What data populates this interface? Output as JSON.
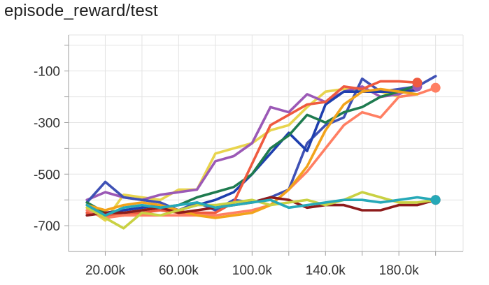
{
  "chart_data": {
    "type": "line",
    "title": "episode_reward/test",
    "xlabel": "",
    "ylabel": "",
    "xlim": [
      0,
      215000
    ],
    "ylim": [
      -800,
      40
    ],
    "x_ticks": [
      20000,
      40000,
      60000,
      80000,
      100000,
      120000,
      140000,
      160000,
      180000,
      200000
    ],
    "x_tick_labels": [
      "20.00k",
      "",
      "60.00k",
      "",
      "100.0k",
      "",
      "140.0k",
      "",
      "180.0k",
      ""
    ],
    "y_ticks": [
      -700,
      -600,
      -500,
      -400,
      -300,
      -200,
      -100,
      0
    ],
    "y_tick_labels": [
      "-700",
      "",
      "-500",
      "",
      "-300",
      "",
      "-100",
      ""
    ],
    "grid": true,
    "legend": "none",
    "series": [
      {
        "color": "#e8d44d",
        "points": [
          [
            10000,
            -630
          ],
          [
            20000,
            -680
          ],
          [
            30000,
            -580
          ],
          [
            40000,
            -590
          ],
          [
            50000,
            -600
          ],
          [
            60000,
            -560
          ],
          [
            70000,
            -560
          ],
          [
            80000,
            -420
          ],
          [
            90000,
            -400
          ],
          [
            100000,
            -380
          ],
          [
            110000,
            -330
          ],
          [
            120000,
            -310
          ],
          [
            130000,
            -240
          ],
          [
            140000,
            -180
          ],
          [
            150000,
            -170
          ],
          [
            160000,
            -175
          ],
          [
            170000,
            -180
          ],
          [
            180000,
            -200
          ],
          [
            190000,
            -190
          ]
        ],
        "end_marker": false
      },
      {
        "color": "#9b59b6",
        "points": [
          [
            10000,
            -600
          ],
          [
            20000,
            -570
          ],
          [
            30000,
            -590
          ],
          [
            40000,
            -600
          ],
          [
            50000,
            -580
          ],
          [
            60000,
            -570
          ],
          [
            70000,
            -560
          ],
          [
            80000,
            -450
          ],
          [
            90000,
            -430
          ],
          [
            100000,
            -380
          ],
          [
            110000,
            -240
          ],
          [
            120000,
            -260
          ],
          [
            130000,
            -190
          ],
          [
            140000,
            -220
          ],
          [
            150000,
            -180
          ],
          [
            160000,
            -160
          ],
          [
            170000,
            -200
          ],
          [
            180000,
            -190
          ],
          [
            190000,
            -160
          ]
        ],
        "end_marker": true
      },
      {
        "color": "#3f51b5",
        "points": [
          [
            10000,
            -610
          ],
          [
            20000,
            -530
          ],
          [
            30000,
            -590
          ],
          [
            40000,
            -600
          ],
          [
            50000,
            -610
          ],
          [
            60000,
            -640
          ],
          [
            70000,
            -610
          ],
          [
            80000,
            -640
          ],
          [
            90000,
            -600
          ],
          [
            100000,
            -610
          ],
          [
            110000,
            -590
          ],
          [
            120000,
            -560
          ],
          [
            130000,
            -380
          ],
          [
            140000,
            -310
          ],
          [
            150000,
            -280
          ],
          [
            160000,
            -130
          ],
          [
            170000,
            -180
          ],
          [
            180000,
            -170
          ],
          [
            190000,
            -160
          ],
          [
            200000,
            -120
          ]
        ],
        "end_marker": false
      },
      {
        "color": "#1e3fae",
        "points": [
          [
            10000,
            -650
          ],
          [
            20000,
            -650
          ],
          [
            30000,
            -640
          ],
          [
            40000,
            -630
          ],
          [
            50000,
            -620
          ],
          [
            60000,
            -640
          ],
          [
            70000,
            -620
          ],
          [
            80000,
            -600
          ],
          [
            90000,
            -570
          ],
          [
            100000,
            -500
          ],
          [
            110000,
            -420
          ],
          [
            120000,
            -340
          ],
          [
            130000,
            -410
          ],
          [
            140000,
            -230
          ],
          [
            150000,
            -180
          ],
          [
            160000,
            -180
          ],
          [
            170000,
            -180
          ],
          [
            180000,
            -180
          ],
          [
            190000,
            -175
          ]
        ],
        "end_marker": false
      },
      {
        "color": "#1e7b4f",
        "points": [
          [
            10000,
            -610
          ],
          [
            20000,
            -650
          ],
          [
            30000,
            -660
          ],
          [
            40000,
            -640
          ],
          [
            50000,
            -630
          ],
          [
            60000,
            -620
          ],
          [
            70000,
            -590
          ],
          [
            80000,
            -570
          ],
          [
            90000,
            -550
          ],
          [
            100000,
            -500
          ],
          [
            110000,
            -400
          ],
          [
            120000,
            -350
          ],
          [
            130000,
            -270
          ],
          [
            140000,
            -300
          ],
          [
            150000,
            -260
          ],
          [
            160000,
            -240
          ],
          [
            170000,
            -200
          ],
          [
            180000,
            -180
          ],
          [
            190000,
            -155
          ]
        ],
        "end_marker": false
      },
      {
        "color": "#ef5a3f",
        "points": [
          [
            10000,
            -650
          ],
          [
            20000,
            -660
          ],
          [
            30000,
            -660
          ],
          [
            40000,
            -650
          ],
          [
            50000,
            -640
          ],
          [
            60000,
            -650
          ],
          [
            70000,
            -650
          ],
          [
            80000,
            -650
          ],
          [
            90000,
            -610
          ],
          [
            100000,
            -460
          ],
          [
            110000,
            -310
          ],
          [
            120000,
            -270
          ],
          [
            130000,
            -230
          ],
          [
            140000,
            -220
          ],
          [
            150000,
            -160
          ],
          [
            160000,
            -170
          ],
          [
            170000,
            -140
          ],
          [
            180000,
            -140
          ],
          [
            190000,
            -145
          ]
        ],
        "end_marker": true
      },
      {
        "color": "#ff7f63",
        "points": [
          [
            10000,
            -640
          ],
          [
            20000,
            -670
          ],
          [
            30000,
            -660
          ],
          [
            40000,
            -660
          ],
          [
            50000,
            -660
          ],
          [
            60000,
            -660
          ],
          [
            70000,
            -660
          ],
          [
            80000,
            -660
          ],
          [
            90000,
            -650
          ],
          [
            100000,
            -640
          ],
          [
            110000,
            -620
          ],
          [
            120000,
            -560
          ],
          [
            130000,
            -490
          ],
          [
            140000,
            -400
          ],
          [
            150000,
            -310
          ],
          [
            160000,
            -260
          ],
          [
            170000,
            -280
          ],
          [
            180000,
            -200
          ],
          [
            190000,
            -190
          ],
          [
            200000,
            -165
          ]
        ],
        "end_marker": true
      },
      {
        "color": "#f2a31b",
        "points": [
          [
            10000,
            -620
          ],
          [
            20000,
            -640
          ],
          [
            30000,
            -620
          ],
          [
            40000,
            -610
          ],
          [
            50000,
            -620
          ],
          [
            60000,
            -640
          ],
          [
            70000,
            -660
          ],
          [
            80000,
            -670
          ],
          [
            90000,
            -660
          ],
          [
            100000,
            -650
          ],
          [
            110000,
            -620
          ],
          [
            120000,
            -560
          ],
          [
            130000,
            -470
          ],
          [
            140000,
            -330
          ],
          [
            150000,
            -230
          ],
          [
            160000,
            -180
          ],
          [
            170000,
            -170
          ],
          [
            180000,
            -180
          ],
          [
            190000,
            -190
          ]
        ],
        "end_marker": false
      },
      {
        "color": "#8e1b1b",
        "points": [
          [
            10000,
            -660
          ],
          [
            20000,
            -650
          ],
          [
            30000,
            -650
          ],
          [
            40000,
            -640
          ],
          [
            50000,
            -630
          ],
          [
            60000,
            -650
          ],
          [
            70000,
            -640
          ],
          [
            80000,
            -630
          ],
          [
            90000,
            -620
          ],
          [
            100000,
            -610
          ],
          [
            110000,
            -590
          ],
          [
            120000,
            -600
          ],
          [
            130000,
            -630
          ],
          [
            140000,
            -620
          ],
          [
            150000,
            -620
          ],
          [
            160000,
            -640
          ],
          [
            170000,
            -640
          ],
          [
            180000,
            -620
          ],
          [
            190000,
            -620
          ],
          [
            200000,
            -600
          ]
        ],
        "end_marker": true
      },
      {
        "color": "#c9d143",
        "points": [
          [
            10000,
            -630
          ],
          [
            20000,
            -670
          ],
          [
            30000,
            -710
          ],
          [
            40000,
            -650
          ],
          [
            50000,
            -660
          ],
          [
            60000,
            -640
          ],
          [
            70000,
            -620
          ],
          [
            80000,
            -620
          ],
          [
            90000,
            -610
          ],
          [
            100000,
            -600
          ],
          [
            110000,
            -620
          ],
          [
            120000,
            -610
          ],
          [
            130000,
            -600
          ],
          [
            140000,
            -620
          ],
          [
            150000,
            -600
          ],
          [
            160000,
            -570
          ],
          [
            170000,
            -590
          ],
          [
            180000,
            -610
          ],
          [
            190000,
            -610
          ],
          [
            200000,
            -600
          ]
        ],
        "end_marker": false
      },
      {
        "color": "#26a9b8",
        "points": [
          [
            10000,
            -620
          ],
          [
            20000,
            -660
          ],
          [
            30000,
            -630
          ],
          [
            40000,
            -620
          ],
          [
            50000,
            -630
          ],
          [
            60000,
            -620
          ],
          [
            70000,
            -610
          ],
          [
            80000,
            -630
          ],
          [
            90000,
            -620
          ],
          [
            100000,
            -610
          ],
          [
            110000,
            -600
          ],
          [
            120000,
            -630
          ],
          [
            130000,
            -620
          ],
          [
            140000,
            -610
          ],
          [
            150000,
            -600
          ],
          [
            160000,
            -600
          ],
          [
            170000,
            -610
          ],
          [
            180000,
            -600
          ],
          [
            190000,
            -590
          ],
          [
            200000,
            -600
          ]
        ],
        "end_marker": true
      }
    ]
  }
}
